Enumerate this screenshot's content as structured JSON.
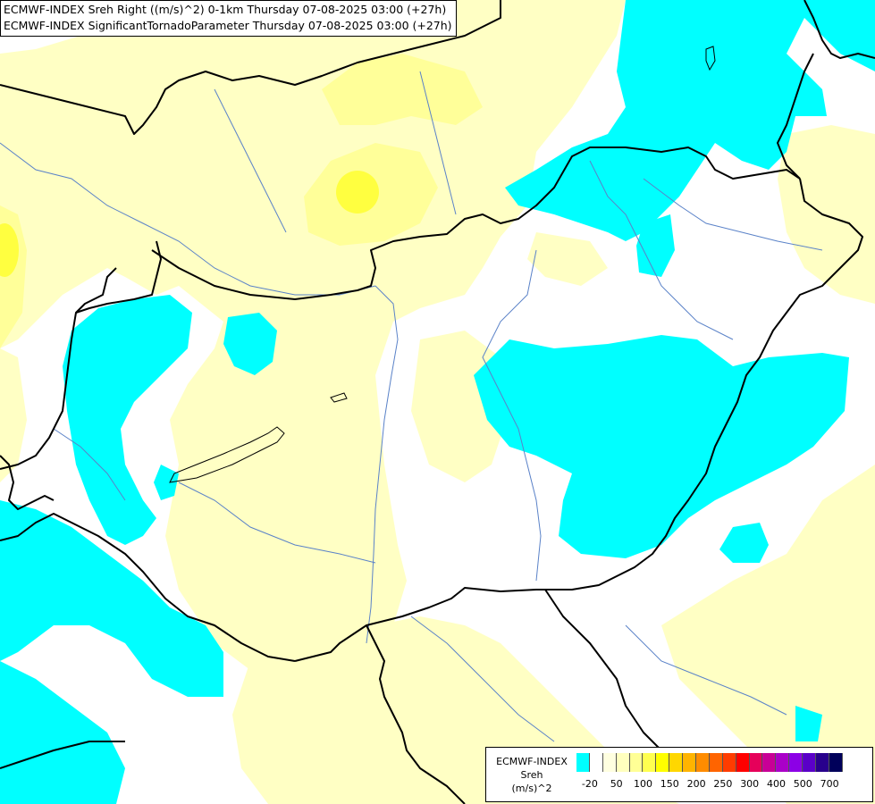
{
  "header": {
    "line1": "ECMWF-INDEX Sreh Right ((m/s)^2) 0-1km Thursday 07-08-2025 03:00 (+27h)",
    "line2": "ECMWF-INDEX SignificantTornadoParameter Thursday 07-08-2025 03:00 (+27h)"
  },
  "legend": {
    "title": "ECMWF-INDEX",
    "parameter": "Sreh",
    "unit": "(m/s)^2",
    "ticks": [
      "-20",
      "50",
      "100",
      "150",
      "200",
      "250",
      "300",
      "400",
      "500",
      "700"
    ],
    "colors": [
      "#00ffff",
      "#ffffff",
      "#ffffe0",
      "#ffffbe",
      "#ffff96",
      "#ffff50",
      "#ffff00",
      "#ffd700",
      "#ffb400",
      "#ff8c00",
      "#ff6400",
      "#ff3c00",
      "#ff0000",
      "#e6005a",
      "#c80096",
      "#aa00c8",
      "#8c00e6",
      "#5a00c8",
      "#28008c",
      "#00005a"
    ]
  },
  "map": {
    "fill_colors": {
      "cyan": "#00ffff",
      "pale_yellow": "#ffffc4",
      "light_yellow": "#ffff99",
      "yellow": "#ffff40",
      "white": "#ffffff"
    },
    "border_color": "#000000",
    "river_color": "#5a82c8"
  }
}
